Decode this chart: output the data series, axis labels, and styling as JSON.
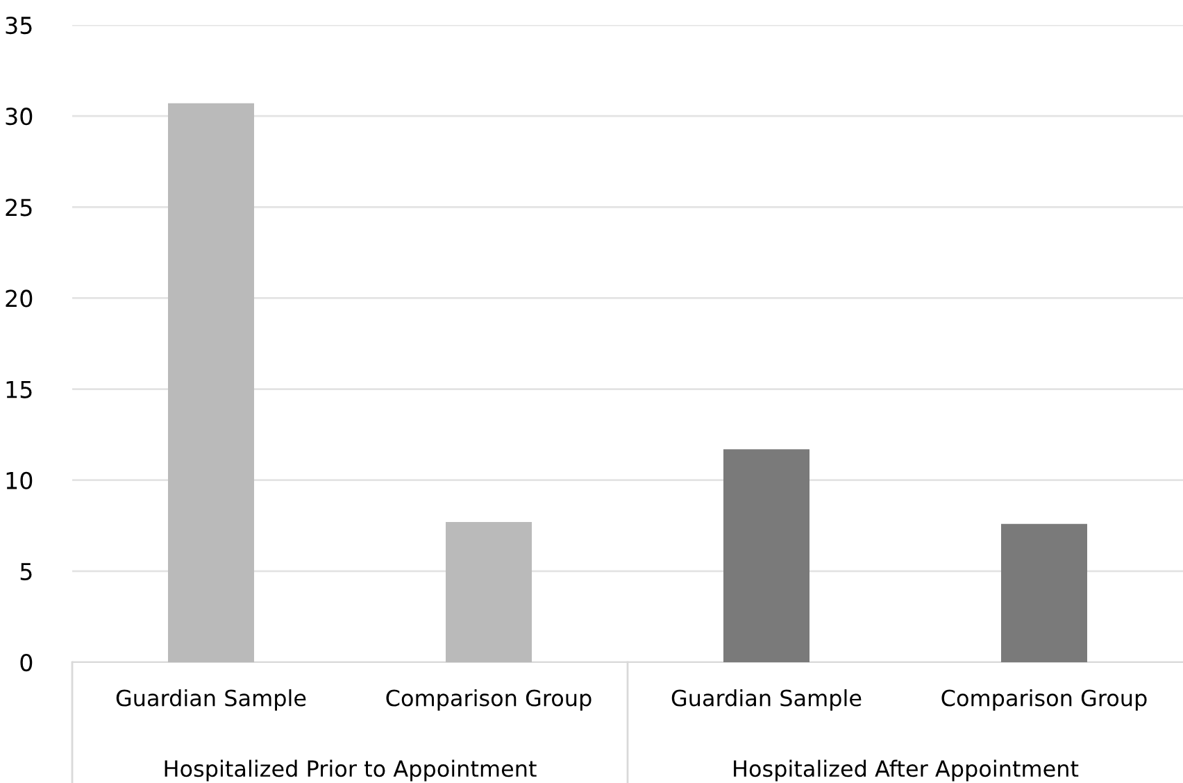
{
  "chart_data": {
    "type": "bar",
    "categories": [
      "Guardian Sample",
      "Comparison Group",
      "Guardian Sample",
      "Comparison Group"
    ],
    "values": [
      30.7,
      7.7,
      11.7,
      7.6
    ],
    "colors": [
      "#bababa",
      "#bababa",
      "#7a7a7a",
      "#7a7a7a"
    ],
    "ylim": [
      0,
      35
    ],
    "yticks": [
      0,
      5,
      10,
      15,
      20,
      25,
      30,
      35
    ],
    "grid": "y",
    "annotations": [
      "Hospitalized Prior to Appointment",
      "Hospitalized After Appointment"
    ]
  }
}
